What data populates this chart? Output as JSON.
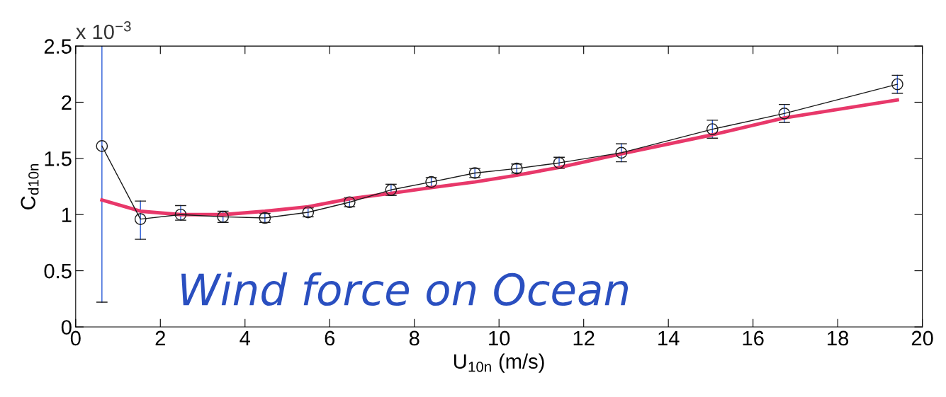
{
  "chart_data": {
    "type": "line",
    "xlabel": "U$_{10n}$ (m/s)",
    "ylabel": "C$_{d10n}$",
    "x": [
      0.62,
      1.53,
      2.48,
      3.48,
      4.47,
      5.49,
      6.47,
      7.45,
      8.4,
      9.43,
      10.42,
      11.42,
      12.89,
      15.04,
      16.74,
      19.41
    ],
    "series": [
      {
        "color": "#1a1a1a",
        "marker": "circle",
        "values": [
          1.61,
          0.96,
          1.0,
          0.98,
          0.97,
          1.02,
          1.11,
          1.22,
          1.29,
          1.37,
          1.41,
          1.46,
          1.55,
          1.76,
          1.9,
          2.16
        ],
        "errors": [
          [
            0.22,
            2.5
          ],
          [
            0.78,
            1.12
          ],
          [
            0.95,
            1.08
          ],
          0.05,
          0.04,
          0.04,
          0.04,
          0.05,
          0.04,
          0.04,
          0.04,
          0.05,
          0.08,
          0.08,
          0.08,
          0.08
        ]
      },
      {
        "color": "#e8386a",
        "marker": "none",
        "values": [
          1.13,
          1.03,
          1.0,
          1.0,
          1.03,
          1.07,
          1.14,
          1.19,
          1.24,
          1.29,
          1.35,
          1.42,
          1.54,
          1.71,
          1.86,
          2.02
        ]
      }
    ],
    "xlim": [
      0,
      20
    ],
    "xticks": [
      0,
      2,
      4,
      6,
      8,
      10,
      12,
      14,
      16,
      18,
      20
    ],
    "ylim": [
      0,
      2.5
    ],
    "yticks": [
      0,
      0.5,
      1,
      1.5,
      2,
      2.5
    ],
    "grid": false,
    "line_style": "solid",
    "annotations": [
      "x 10$^{−3}$",
      "Wind force on Ocean"
    ]
  }
}
